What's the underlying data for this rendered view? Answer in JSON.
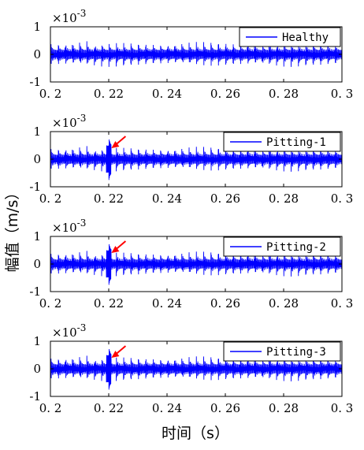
{
  "chart_data": [
    {
      "type": "line",
      "panel": 1,
      "series": [
        {
          "name": "Healthy",
          "color": "#0000ff",
          "amplitude": 0.0005,
          "peak": null
        }
      ],
      "x": {
        "start": 0.2,
        "end": 0.3
      },
      "xlim": [
        0.2,
        0.3
      ],
      "ylim": [
        -1,
        1
      ],
      "y_multiplier": "×10",
      "y_multiplier_exp": "-3",
      "xticks": [
        "0.2",
        "0.22",
        "0.24",
        "0.26",
        "0.28",
        "0.3"
      ],
      "yticks": [
        "1",
        "0",
        "-1"
      ],
      "legend_position": "top-right",
      "arrow": false
    },
    {
      "type": "line",
      "panel": 2,
      "series": [
        {
          "name": "Pitting-1",
          "color": "#0000ff",
          "amplitude": 0.0005,
          "peak": 0.0008
        }
      ],
      "x": {
        "start": 0.2,
        "end": 0.3
      },
      "xlim": [
        0.2,
        0.3
      ],
      "ylim": [
        -1,
        1
      ],
      "y_multiplier": "×10",
      "y_multiplier_exp": "-3",
      "xticks": [
        "0.2",
        "0.22",
        "0.24",
        "0.26",
        "0.28",
        "0.3"
      ],
      "yticks": [
        "1",
        "0",
        "-1"
      ],
      "legend_position": "top-right",
      "arrow": true
    },
    {
      "type": "line",
      "panel": 3,
      "series": [
        {
          "name": "Pitting-2",
          "color": "#0000ff",
          "amplitude": 0.0005,
          "peak": 0.0008
        }
      ],
      "x": {
        "start": 0.2,
        "end": 0.3
      },
      "xlim": [
        0.2,
        0.3
      ],
      "ylim": [
        -1,
        1
      ],
      "y_multiplier": "×10",
      "y_multiplier_exp": "-3",
      "xticks": [
        "0.2",
        "0.22",
        "0.24",
        "0.26",
        "0.28",
        "0.3"
      ],
      "yticks": [
        "1",
        "0",
        "-1"
      ],
      "legend_position": "top-right",
      "arrow": true
    },
    {
      "type": "line",
      "panel": 4,
      "series": [
        {
          "name": "Pitting-3",
          "color": "#0000ff",
          "amplitude": 0.0005,
          "peak": 0.0008
        }
      ],
      "x": {
        "start": 0.2,
        "end": 0.3
      },
      "xlim": [
        0.2,
        0.3
      ],
      "ylim": [
        -1,
        1
      ],
      "y_multiplier": "×10",
      "y_multiplier_exp": "-3",
      "xticks": [
        "0.2",
        "0.22",
        "0.24",
        "0.26",
        "0.28",
        "0.3"
      ],
      "yticks": [
        "1",
        "0",
        "-1"
      ],
      "legend_position": "top-right",
      "arrow": true
    }
  ],
  "labels": {
    "ylabel": "幅值（m/s）",
    "xlabel": "时间（s）"
  },
  "colors": {
    "signal": "#0000ff",
    "arrow": "#ff0000",
    "axes": "#000000"
  },
  "impulse_period_s": 0.0025
}
